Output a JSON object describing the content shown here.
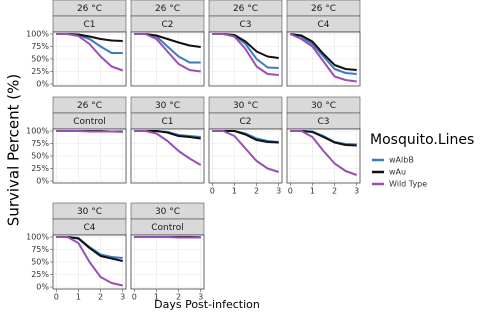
{
  "chart_data": {
    "type": "line",
    "ylabel": "Survival Percent (%)",
    "xlabel": "Days Post-infection",
    "legend_title": "Mosquito.Lines",
    "x": [
      0,
      0.5,
      1,
      1.5,
      2,
      2.5,
      3
    ],
    "xlim": [
      -0.15,
      3.15
    ],
    "xticks": [
      0,
      1,
      2,
      3
    ],
    "ylim": [
      -4,
      104
    ],
    "yticks": [
      {
        "value": 0,
        "label": "0%"
      },
      {
        "value": 25,
        "label": "25%"
      },
      {
        "value": 50,
        "label": "50%"
      },
      {
        "value": 75,
        "label": "75%"
      },
      {
        "value": 100,
        "label": "100%"
      }
    ],
    "grid": true,
    "series": [
      {
        "name": "wAlbB",
        "color": "#3a7dbf"
      },
      {
        "name": "wAu",
        "color": "#111111"
      },
      {
        "name": "Wild Type",
        "color": "#9b4fb5"
      }
    ],
    "panels": [
      {
        "strip": [
          "26 °C",
          "C1"
        ],
        "values": [
          [
            100,
            100,
            98,
            90,
            75,
            62,
            62
          ],
          [
            100,
            100,
            99,
            95,
            90,
            87,
            86
          ],
          [
            100,
            100,
            96,
            80,
            55,
            35,
            27
          ]
        ]
      },
      {
        "strip": [
          "26 °C",
          "C2"
        ],
        "values": [
          [
            100,
            100,
            95,
            75,
            55,
            43,
            43
          ],
          [
            100,
            100,
            97,
            90,
            83,
            77,
            74
          ],
          [
            100,
            100,
            90,
            65,
            40,
            28,
            25
          ]
        ]
      },
      {
        "strip": [
          "26 °C",
          "C3"
        ],
        "values": [
          [
            100,
            100,
            97,
            80,
            50,
            33,
            32
          ],
          [
            100,
            100,
            98,
            85,
            65,
            55,
            52
          ],
          [
            100,
            100,
            95,
            70,
            35,
            20,
            18
          ]
        ]
      },
      {
        "strip": [
          "26 °C",
          "C4"
        ],
        "values": [
          [
            100,
            95,
            80,
            55,
            30,
            22,
            20
          ],
          [
            100,
            97,
            85,
            60,
            38,
            30,
            28
          ],
          [
            100,
            90,
            75,
            45,
            15,
            8,
            5
          ]
        ]
      },
      {
        "strip": [
          "26 °C",
          "Control"
        ],
        "values": [
          [
            100,
            100,
            100,
            100,
            99,
            99,
            99
          ],
          [
            100,
            100,
            100,
            100,
            100,
            99,
            99
          ],
          [
            100,
            100,
            100,
            99,
            99,
            99,
            98
          ]
        ]
      },
      {
        "strip": [
          "30 °C",
          "C1"
        ],
        "values": [
          [
            100,
            100,
            100,
            98,
            92,
            90,
            88
          ],
          [
            100,
            100,
            100,
            97,
            90,
            88,
            85
          ],
          [
            100,
            100,
            95,
            80,
            60,
            45,
            32
          ]
        ]
      },
      {
        "strip": [
          "30 °C",
          "C2"
        ],
        "values": [
          [
            100,
            100,
            100,
            95,
            85,
            80,
            78
          ],
          [
            100,
            100,
            100,
            93,
            82,
            78,
            77
          ],
          [
            100,
            100,
            90,
            65,
            40,
            25,
            18
          ]
        ]
      },
      {
        "strip": [
          "30 °C",
          "C3"
        ],
        "values": [
          [
            100,
            100,
            99,
            90,
            78,
            74,
            73
          ],
          [
            100,
            100,
            98,
            88,
            77,
            72,
            71
          ],
          [
            100,
            100,
            88,
            60,
            35,
            20,
            12
          ]
        ]
      },
      {
        "strip": [
          "30 °C",
          "C4"
        ],
        "values": [
          [
            100,
            100,
            98,
            80,
            65,
            60,
            58
          ],
          [
            100,
            100,
            97,
            78,
            62,
            57,
            52
          ],
          [
            100,
            100,
            88,
            50,
            20,
            8,
            3
          ]
        ]
      },
      {
        "strip": [
          "30 °C",
          "Control"
        ],
        "values": [
          [
            100,
            100,
            100,
            100,
            100,
            100,
            100
          ],
          [
            100,
            100,
            100,
            100,
            100,
            100,
            99
          ],
          [
            100,
            100,
            100,
            100,
            99,
            99,
            99
          ]
        ]
      }
    ]
  }
}
